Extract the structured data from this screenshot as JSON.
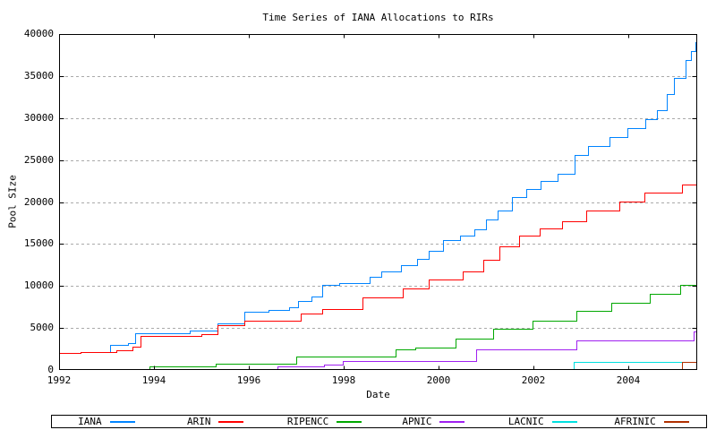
{
  "chart_data": {
    "type": "line",
    "step_mode": "post",
    "title": "Time Series of IANA Allocations to RIRs",
    "xlabel": "Date",
    "ylabel": "Pool SIze",
    "xlim": [
      1992,
      2005.45
    ],
    "ylim": [
      0,
      40000
    ],
    "x_ticks": [
      1992,
      1994,
      1996,
      1998,
      2000,
      2002,
      2004
    ],
    "y_ticks": [
      0,
      5000,
      10000,
      15000,
      20000,
      25000,
      30000,
      35000,
      40000
    ],
    "grid": {
      "horizontal": true,
      "vertical": false,
      "style": "dashed",
      "color": "#aaaaaa"
    },
    "legend_position": "bottom",
    "background": "#ffffff",
    "axis_color": "#000000",
    "series": [
      {
        "name": "IANA",
        "color": "#0084ff",
        "points": [
          [
            1992.0,
            2050
          ],
          [
            1992.45,
            2150
          ],
          [
            1993.08,
            3000
          ],
          [
            1993.45,
            3250
          ],
          [
            1993.6,
            4350
          ],
          [
            1994.75,
            4700
          ],
          [
            1995.34,
            5550
          ],
          [
            1995.9,
            6950
          ],
          [
            1996.42,
            7200
          ],
          [
            1996.85,
            7500
          ],
          [
            1997.03,
            8200
          ],
          [
            1997.32,
            8800
          ],
          [
            1997.55,
            10100
          ],
          [
            1997.9,
            10400
          ],
          [
            1998.55,
            11100
          ],
          [
            1998.8,
            11700
          ],
          [
            1999.2,
            12500
          ],
          [
            1999.55,
            13200
          ],
          [
            1999.8,
            14200
          ],
          [
            2000.1,
            15500
          ],
          [
            2000.45,
            16000
          ],
          [
            2000.75,
            16800
          ],
          [
            2001.0,
            17900
          ],
          [
            2001.25,
            19000
          ],
          [
            2001.55,
            20600
          ],
          [
            2001.85,
            21500
          ],
          [
            2002.15,
            22500
          ],
          [
            2002.5,
            23400
          ],
          [
            2002.86,
            25600
          ],
          [
            2003.15,
            26700
          ],
          [
            2003.6,
            27700
          ],
          [
            2003.98,
            28800
          ],
          [
            2004.36,
            29900
          ],
          [
            2004.6,
            30900
          ],
          [
            2004.8,
            32900
          ],
          [
            2004.96,
            34800
          ],
          [
            2005.2,
            36900
          ],
          [
            2005.32,
            38000
          ],
          [
            2005.42,
            39000
          ]
        ]
      },
      {
        "name": "ARIN",
        "color": "#ff0000",
        "points": [
          [
            1992.0,
            2050
          ],
          [
            1992.45,
            2150
          ],
          [
            1993.2,
            2350
          ],
          [
            1993.55,
            2800
          ],
          [
            1993.72,
            4080
          ],
          [
            1995.0,
            4300
          ],
          [
            1995.34,
            5300
          ],
          [
            1995.9,
            5900
          ],
          [
            1997.1,
            6700
          ],
          [
            1997.55,
            7250
          ],
          [
            1998.4,
            8600
          ],
          [
            1999.25,
            9700
          ],
          [
            1999.8,
            10800
          ],
          [
            2000.5,
            11700
          ],
          [
            2000.94,
            13100
          ],
          [
            2001.28,
            14700
          ],
          [
            2001.7,
            16000
          ],
          [
            2002.13,
            16850
          ],
          [
            2002.6,
            17700
          ],
          [
            2003.11,
            19000
          ],
          [
            2003.81,
            20050
          ],
          [
            2004.34,
            21100
          ],
          [
            2005.13,
            22100
          ]
        ]
      },
      {
        "name": "RIPENCC",
        "color": "#00a800",
        "points": [
          [
            1992.87,
            100
          ],
          [
            1993.9,
            430
          ],
          [
            1995.3,
            700
          ],
          [
            1997.0,
            1650
          ],
          [
            1999.1,
            2450
          ],
          [
            1999.5,
            2700
          ],
          [
            2000.35,
            3700
          ],
          [
            2001.15,
            4900
          ],
          [
            2001.98,
            5850
          ],
          [
            2002.9,
            7040
          ],
          [
            2003.64,
            8000
          ],
          [
            2004.45,
            9100
          ],
          [
            2005.1,
            10150
          ]
        ]
      },
      {
        "name": "APNIC",
        "color": "#a020f0",
        "points": [
          [
            1994.5,
            110
          ],
          [
            1996.6,
            430
          ],
          [
            1997.58,
            660
          ],
          [
            1997.98,
            1100
          ],
          [
            2000.8,
            2500
          ],
          [
            2002.9,
            3520
          ],
          [
            2005.38,
            4600
          ]
        ]
      },
      {
        "name": "LACNIC",
        "color": "#00e0e0",
        "points": [
          [
            2002.85,
            0
          ],
          [
            2002.85,
            1000
          ]
        ]
      },
      {
        "name": "AFRINIC",
        "color": "#b03000",
        "points": [
          [
            2005.13,
            0
          ],
          [
            2005.13,
            1000
          ]
        ]
      }
    ]
  }
}
